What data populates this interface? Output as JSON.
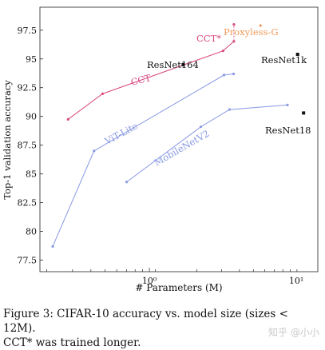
{
  "chart_data": {
    "type": "scatter",
    "xlabel": "# Parameters (M)",
    "ylabel": "Top-1 validation accuracy",
    "xscale": "log",
    "xlim": [
      0.18,
      14
    ],
    "ylim": [
      76.5,
      99.5
    ],
    "x_ticks": [
      {
        "value": 1,
        "label": "10⁰"
      },
      {
        "value": 10,
        "label": "10¹"
      }
    ],
    "y_ticks": [
      77.5,
      80,
      82.5,
      85,
      87.5,
      90,
      92.5,
      95,
      97.5
    ],
    "y_tick_labels": [
      "77.5",
      "80",
      "82.5",
      "85",
      "87.5",
      "90",
      "92.5",
      "95",
      "97.5"
    ],
    "grid": false,
    "series": [
      {
        "name": "CCT",
        "color": "#d9477f",
        "marker": "dot",
        "x": [
          0.28,
          0.48,
          3.17,
          3.76
        ],
        "y": [
          89.75,
          91.97,
          95.7,
          96.53
        ]
      },
      {
        "name": "ViT-Lite",
        "color": "#8899e4",
        "marker": "dot",
        "x": [
          0.22,
          0.42,
          3.22,
          3.74
        ],
        "y": [
          78.7,
          87.0,
          93.6,
          93.7
        ]
      },
      {
        "name": "MobileNetV2",
        "color": "#8899e4",
        "marker": "dot",
        "x": [
          0.7,
          2.24,
          3.51,
          8.7
        ],
        "y": [
          84.3,
          89.1,
          90.6,
          91.0
        ]
      },
      {
        "name": "CCT*",
        "color": "#d9477f",
        "marker": "dot",
        "x": [
          3.76
        ],
        "y": [
          98.0
        ]
      },
      {
        "name": "Proxyless-G",
        "color": "#f09a5a",
        "marker": "dot",
        "x": [
          5.7
        ],
        "y": [
          97.9
        ]
      },
      {
        "name": "ResNet164",
        "color": "#111111",
        "marker": "square",
        "x": [
          1.7
        ],
        "y": [
          94.5
        ]
      },
      {
        "name": "ResNet1k",
        "color": "#111111",
        "marker": "square",
        "x": [
          10.2
        ],
        "y": [
          95.4
        ]
      },
      {
        "name": "ResNet18",
        "color": "#111111",
        "marker": "square",
        "x": [
          11.2
        ],
        "y": [
          90.3
        ]
      }
    ],
    "annotations": [
      {
        "text": "CCT",
        "color": "#d9477f"
      },
      {
        "text": "ViT-Lite",
        "color": "#8899e4"
      },
      {
        "text": "MobileNetV2",
        "color": "#8899e4"
      },
      {
        "text": "CCT*",
        "color": "#d9477f"
      },
      {
        "text": "Proxyless-G",
        "color": "#f09a5a"
      },
      {
        "text": "ResNet164",
        "color": "#111111"
      },
      {
        "text": "ResNet1k",
        "color": "#111111"
      },
      {
        "text": "ResNet18",
        "color": "#111111"
      }
    ]
  },
  "caption": {
    "line1": "Figure 3: CIFAR-10 accuracy vs. model size (sizes < 12M).",
    "line2": "CCT* was trained longer."
  },
  "watermark": "知乎 @小小"
}
